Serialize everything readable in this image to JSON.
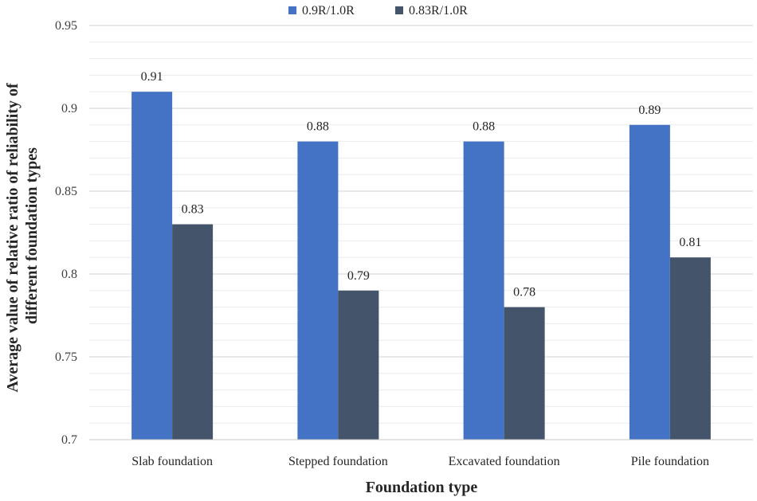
{
  "chart_data": {
    "type": "bar",
    "title": "",
    "xlabel": "Foundation type",
    "ylabel_lines": [
      "Average value of relative ratio of reliability of",
      "different foundation types"
    ],
    "categories": [
      "Slab foundation",
      "Stepped  foundation",
      "Excavated foundation",
      "Pile foundation"
    ],
    "series": [
      {
        "name": "0.9R/1.0R",
        "values": [
          0.91,
          0.88,
          0.88,
          0.89
        ],
        "color": "#4472C4"
      },
      {
        "name": "0.83R/1.0R",
        "values": [
          0.83,
          0.79,
          0.78,
          0.81
        ],
        "color": "#44546A"
      }
    ],
    "ylim": [
      0.7,
      0.95
    ],
    "yticks": [
      0.7,
      0.75,
      0.8,
      0.85,
      0.9,
      0.95
    ],
    "ytick_labels": [
      "0.7",
      "0.75",
      "0.8",
      "0.85",
      "0.9",
      "0.95"
    ],
    "data_labels": [
      [
        "0.91",
        "0.88",
        "0.88",
        "0.89"
      ],
      [
        "0.83",
        "0.79",
        "0.78",
        "0.81"
      ]
    ],
    "grid": true,
    "minor_grid_step": 0.01,
    "legend": "top-center"
  }
}
